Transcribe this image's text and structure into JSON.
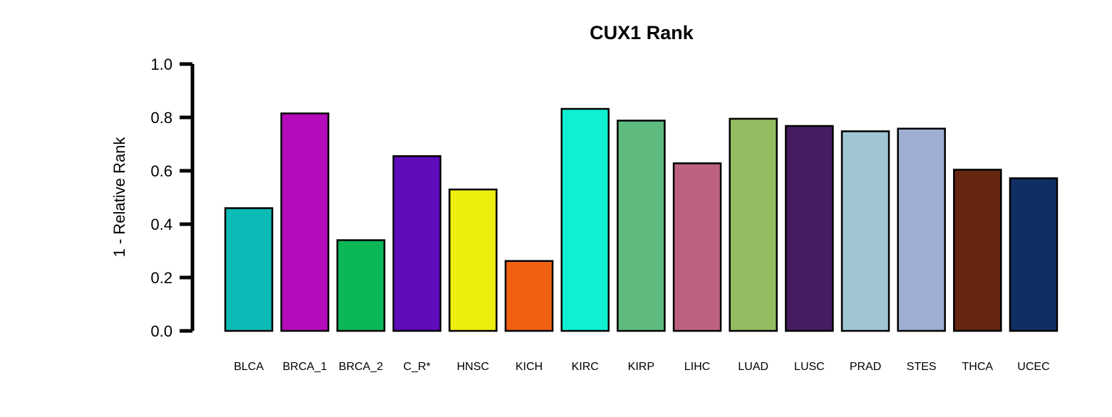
{
  "chart_data": {
    "type": "bar",
    "title": "CUX1 Rank",
    "xlabel": "",
    "ylabel": "1 - Relative Rank",
    "ylim": [
      0,
      1.0
    ],
    "yticks": [
      "0.0",
      "0.2",
      "0.4",
      "0.6",
      "0.8",
      "1.0"
    ],
    "grid": false,
    "legend": "none",
    "categories": [
      "BLCA",
      "BRCA_1",
      "BRCA_2",
      "C_R*",
      "HNSC",
      "KICH",
      "KIRC",
      "KIRP",
      "LIHC",
      "LUAD",
      "LUSC",
      "PRAD",
      "STES",
      "THCA",
      "UCEC"
    ],
    "values": [
      0.46,
      0.815,
      0.34,
      0.655,
      0.53,
      0.262,
      0.832,
      0.788,
      0.628,
      0.795,
      0.768,
      0.748,
      0.758,
      0.604,
      0.572
    ],
    "colors": [
      "#0bbbb5",
      "#b50bbb",
      "#0bb757",
      "#5e0bb9",
      "#eeee0e",
      "#f06012",
      "#0ef0d2",
      "#5fba7f",
      "#bc6280",
      "#96bc62",
      "#461c60",
      "#a0c6d4",
      "#9eadd1",
      "#652612",
      "#0f2e64"
    ]
  }
}
